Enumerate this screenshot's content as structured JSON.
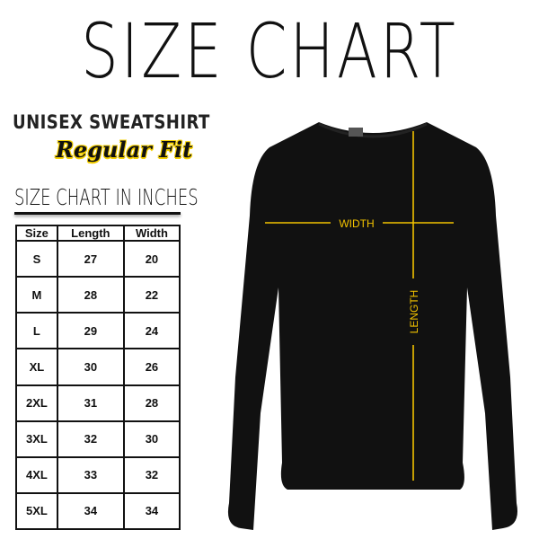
{
  "title": "SIZE CHART",
  "product": "UNISEX SWEATSHIRT",
  "fit": "Regular Fit",
  "table_title": "SIZE CHART IN INCHES",
  "table": {
    "headers": [
      "Size",
      "Length",
      "Width"
    ],
    "rows": [
      [
        "S",
        "27",
        "20"
      ],
      [
        "M",
        "28",
        "22"
      ],
      [
        "L",
        "29",
        "24"
      ],
      [
        "XL",
        "30",
        "26"
      ],
      [
        "2XL",
        "31",
        "28"
      ],
      [
        "3XL",
        "32",
        "30"
      ],
      [
        "4XL",
        "33",
        "32"
      ],
      [
        "5XL",
        "34",
        "34"
      ]
    ]
  },
  "measure": {
    "width_label": "WIDTH",
    "length_label": "LENGTH"
  },
  "colors": {
    "accent": "#f2c200",
    "garment": "#111111"
  }
}
